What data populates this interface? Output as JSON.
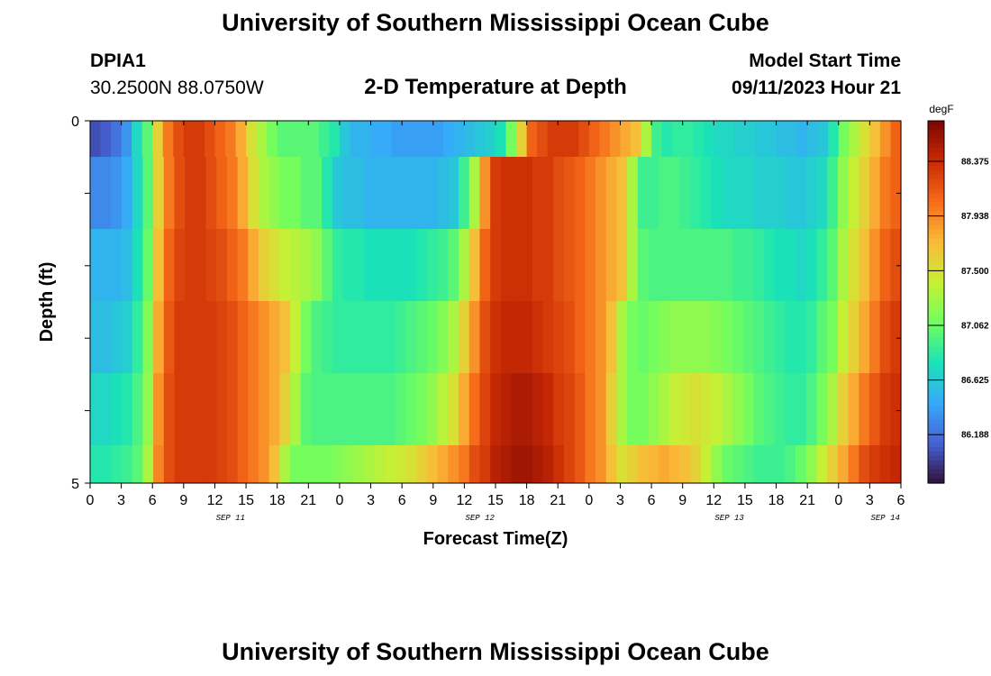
{
  "header": {
    "title": "University of Southern Mississippi Ocean Cube",
    "station": "DPIA1",
    "coords": "30.2500N  88.0750W",
    "subtitle": "2-D Temperature at Depth",
    "model_start_label": "Model Start Time",
    "model_start_value": "09/11/2023 Hour 21"
  },
  "footer": {
    "title": "University of Southern Mississippi Ocean Cube"
  },
  "chart_data": {
    "type": "heatmap",
    "title": "2-D Temperature at Depth",
    "xlabel": "Forecast Time(Z)",
    "ylabel": "Depth (ft)",
    "colorbar_unit": "degF",
    "colorbar_ticks": [
      "88.375",
      "87.938",
      "87.500",
      "87.062",
      "86.625",
      "86.188"
    ],
    "colorbar_range": [
      85.8,
      88.7
    ],
    "y_ticks": [
      "0",
      "5"
    ],
    "x_ticks": [
      "0",
      "3",
      "6",
      "9",
      "12",
      "15",
      "18",
      "21",
      "0",
      "3",
      "6",
      "9",
      "12",
      "15",
      "18",
      "21",
      "0",
      "3",
      "6",
      "9",
      "12",
      "15",
      "18",
      "21",
      "0",
      "3",
      "6"
    ],
    "date_labels": [
      {
        "text": "SEP 11",
        "hour_index": 13.5
      },
      {
        "text": "SEP 12",
        "hour_index": 37.5
      },
      {
        "text": "SEP 13",
        "hour_index": 61.5
      },
      {
        "text": "SEP 14",
        "hour_index": 76.5
      }
    ],
    "x_hours_range": [
      0,
      78
    ],
    "depth_rows": [
      0,
      1,
      2,
      3,
      4,
      5
    ],
    "values_degF": [
      [
        86.05,
        86.1,
        86.2,
        86.35,
        86.7,
        87.0,
        87.6,
        88.0,
        88.2,
        88.3,
        88.3,
        88.2,
        88.1,
        88.0,
        87.8,
        87.5,
        87.3,
        87.1,
        87.0,
        87.0,
        87.0,
        87.0,
        86.9,
        86.8,
        86.6,
        86.5,
        86.5,
        86.45,
        86.45,
        86.4,
        86.4,
        86.4,
        86.4,
        86.4,
        86.45,
        86.5,
        86.55,
        86.6,
        86.65,
        86.75,
        87.1,
        87.6,
        88.1,
        88.2,
        88.3,
        88.3,
        88.3,
        88.2,
        88.1,
        88.0,
        87.9,
        87.8,
        87.7,
        87.3,
        86.9,
        86.8,
        86.85,
        86.85,
        86.8,
        86.75,
        86.7,
        86.7,
        86.65,
        86.65,
        86.6,
        86.6,
        86.55,
        86.55,
        86.5,
        86.55,
        86.6,
        86.8,
        87.1,
        87.3,
        87.5,
        87.7,
        87.9,
        88.1
      ],
      [
        86.3,
        86.3,
        86.35,
        86.45,
        86.7,
        87.0,
        87.6,
        88.0,
        88.2,
        88.3,
        88.3,
        88.2,
        88.1,
        88.0,
        87.8,
        87.5,
        87.3,
        87.2,
        87.1,
        87.1,
        87.0,
        87.0,
        86.8,
        86.6,
        86.55,
        86.55,
        86.5,
        86.5,
        86.5,
        86.5,
        86.5,
        86.5,
        86.5,
        86.55,
        86.6,
        86.9,
        87.3,
        87.9,
        88.3,
        88.35,
        88.35,
        88.35,
        88.3,
        88.3,
        88.2,
        88.15,
        88.1,
        88.0,
        87.9,
        87.8,
        87.7,
        87.3,
        86.9,
        86.9,
        86.95,
        86.95,
        86.9,
        86.85,
        86.8,
        86.75,
        86.7,
        86.7,
        86.7,
        86.65,
        86.65,
        86.65,
        86.6,
        86.6,
        86.65,
        86.7,
        86.9,
        87.2,
        87.4,
        87.6,
        87.8,
        88.0,
        88.1
      ],
      [
        86.5,
        86.5,
        86.5,
        86.55,
        86.75,
        87.05,
        87.7,
        88.1,
        88.25,
        88.3,
        88.3,
        88.25,
        88.2,
        88.1,
        88.0,
        87.8,
        87.6,
        87.5,
        87.4,
        87.35,
        87.3,
        87.2,
        87.0,
        86.85,
        86.8,
        86.8,
        86.75,
        86.75,
        86.75,
        86.75,
        86.75,
        86.8,
        86.85,
        86.9,
        87.0,
        87.3,
        87.7,
        88.1,
        88.3,
        88.35,
        88.35,
        88.35,
        88.3,
        88.3,
        88.2,
        88.15,
        88.1,
        88.0,
        87.9,
        87.8,
        87.7,
        87.3,
        87.0,
        86.95,
        86.95,
        86.95,
        86.95,
        86.95,
        86.95,
        86.95,
        86.95,
        86.9,
        86.9,
        86.85,
        86.8,
        86.75,
        86.75,
        86.7,
        86.75,
        86.85,
        87.0,
        87.3,
        87.5,
        87.7,
        87.9,
        88.1,
        88.2
      ],
      [
        86.55,
        86.55,
        86.6,
        86.65,
        86.85,
        87.15,
        87.8,
        88.15,
        88.3,
        88.3,
        88.3,
        88.3,
        88.25,
        88.2,
        88.1,
        88.0,
        87.9,
        87.8,
        87.7,
        87.4,
        87.1,
        86.95,
        86.9,
        86.85,
        86.85,
        86.85,
        86.85,
        86.85,
        86.85,
        86.9,
        86.95,
        87.0,
        87.05,
        87.15,
        87.3,
        87.6,
        87.9,
        88.2,
        88.35,
        88.4,
        88.4,
        88.4,
        88.35,
        88.3,
        88.25,
        88.2,
        88.1,
        88.0,
        87.9,
        87.7,
        87.3,
        87.1,
        87.05,
        87.1,
        87.15,
        87.2,
        87.2,
        87.2,
        87.2,
        87.15,
        87.1,
        87.05,
        87.0,
        86.95,
        86.9,
        86.85,
        86.8,
        86.8,
        86.85,
        87.0,
        87.1,
        87.4,
        87.6,
        87.8,
        88.0,
        88.2,
        88.3
      ],
      [
        86.7,
        86.7,
        86.75,
        86.8,
        86.95,
        87.2,
        87.9,
        88.2,
        88.3,
        88.3,
        88.3,
        88.3,
        88.25,
        88.2,
        88.1,
        88.0,
        87.9,
        87.8,
        87.6,
        87.3,
        87.0,
        86.95,
        86.95,
        86.95,
        86.95,
        86.95,
        86.95,
        86.95,
        86.95,
        87.0,
        87.05,
        87.1,
        87.2,
        87.35,
        87.5,
        87.8,
        88.05,
        88.25,
        88.4,
        88.45,
        88.5,
        88.5,
        88.45,
        88.4,
        88.3,
        88.25,
        88.15,
        88.0,
        87.9,
        87.6,
        87.3,
        87.1,
        87.1,
        87.2,
        87.3,
        87.4,
        87.45,
        87.5,
        87.45,
        87.4,
        87.3,
        87.2,
        87.1,
        87.0,
        86.95,
        86.9,
        86.85,
        86.85,
        86.95,
        87.1,
        87.3,
        87.6,
        87.8,
        88.0,
        88.15,
        88.3,
        88.35
      ],
      [
        86.8,
        86.8,
        86.85,
        86.9,
        87.0,
        87.3,
        87.95,
        88.2,
        88.3,
        88.3,
        88.3,
        88.3,
        88.25,
        88.2,
        88.1,
        88.0,
        87.9,
        87.7,
        87.3,
        87.1,
        87.1,
        87.1,
        87.1,
        87.15,
        87.2,
        87.25,
        87.3,
        87.35,
        87.4,
        87.45,
        87.5,
        87.6,
        87.7,
        87.8,
        87.9,
        88.0,
        88.2,
        88.3,
        88.45,
        88.5,
        88.55,
        88.55,
        88.5,
        88.45,
        88.35,
        88.25,
        88.15,
        88.0,
        87.9,
        87.7,
        87.5,
        87.6,
        87.7,
        87.75,
        87.8,
        87.75,
        87.7,
        87.6,
        87.4,
        87.2,
        87.05,
        87.0,
        86.95,
        86.9,
        86.9,
        86.9,
        86.95,
        87.05,
        87.2,
        87.4,
        87.6,
        87.8,
        88.0,
        88.2,
        88.3,
        88.35,
        88.4
      ]
    ]
  },
  "colors": {
    "colormap_stops": [
      "#30123b",
      "#4662d7",
      "#36aaf9",
      "#1ae4b6",
      "#72fe5e",
      "#c8ef34",
      "#faba39",
      "#f66b19",
      "#ca2a04",
      "#7a0403"
    ]
  }
}
